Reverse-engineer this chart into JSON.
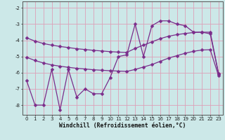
{
  "xlabel": "Windchill (Refroidissement éolien,°C)",
  "x": [
    0,
    1,
    2,
    3,
    4,
    5,
    6,
    7,
    8,
    9,
    10,
    11,
    12,
    13,
    14,
    15,
    16,
    17,
    18,
    19,
    20,
    21,
    22,
    23
  ],
  "y_main": [
    -6.5,
    -8.0,
    -8.0,
    -5.8,
    -8.3,
    -5.8,
    -7.5,
    -7.0,
    -7.3,
    -7.3,
    -6.3,
    -5.0,
    -4.9,
    -3.0,
    -5.0,
    -3.1,
    -2.8,
    -2.8,
    -3.0,
    -3.1,
    -3.5,
    -3.5,
    -3.6,
    -6.1
  ],
  "y_upper": [
    -3.85,
    -4.05,
    -4.2,
    -4.3,
    -4.38,
    -4.45,
    -4.52,
    -4.57,
    -4.62,
    -4.66,
    -4.7,
    -4.73,
    -4.75,
    -4.5,
    -4.3,
    -4.1,
    -3.9,
    -3.75,
    -3.65,
    -3.58,
    -3.52,
    -3.5,
    -3.5,
    -6.05
  ],
  "y_lower": [
    -5.05,
    -5.25,
    -5.4,
    -5.52,
    -5.6,
    -5.67,
    -5.73,
    -5.77,
    -5.82,
    -5.85,
    -5.88,
    -5.9,
    -5.92,
    -5.8,
    -5.65,
    -5.5,
    -5.3,
    -5.1,
    -4.95,
    -4.8,
    -4.68,
    -4.6,
    -4.58,
    -6.2
  ],
  "line_color": "#7b2d8b",
  "bg_color": "#cce8e8",
  "grid_color": "#dda0b8",
  "ylim": [
    -8.6,
    -1.6
  ],
  "yticks": [
    -8,
    -7,
    -6,
    -5,
    -4,
    -3,
    -2
  ],
  "xlim": [
    -0.5,
    23.5
  ],
  "marker_size": 2.5,
  "line_width": 0.9,
  "fontsize_tick": 5.0,
  "fontsize_xlabel": 5.8
}
